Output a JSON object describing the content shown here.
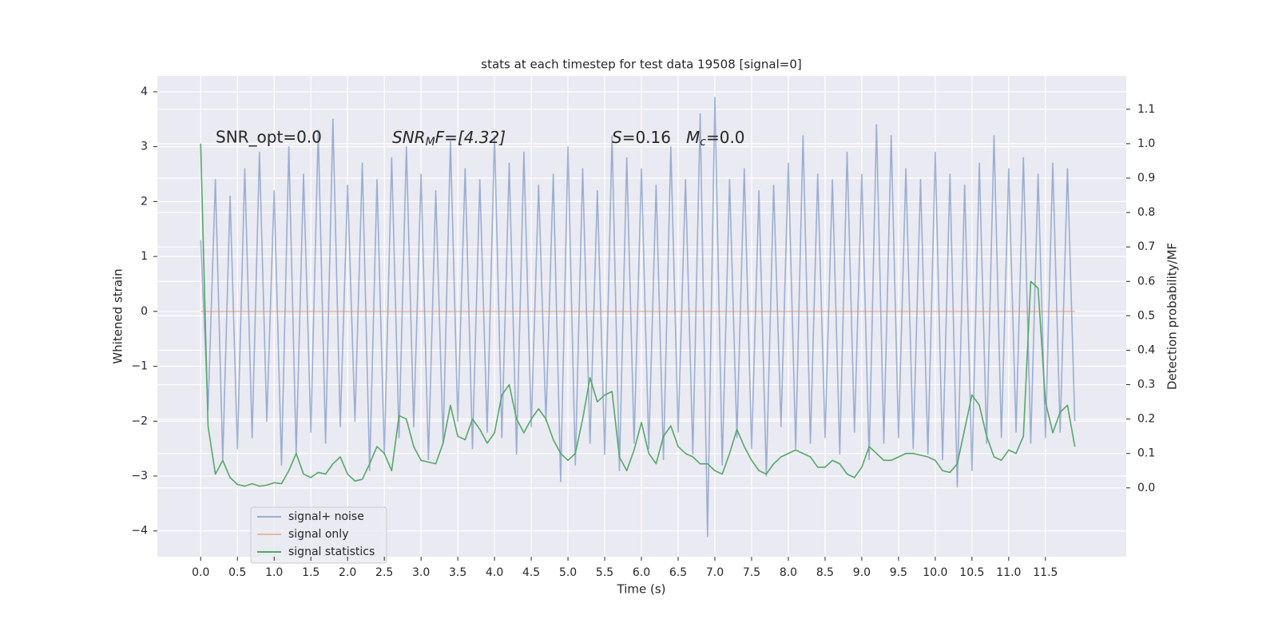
{
  "chart_data": {
    "type": "line",
    "title": "stats at each timestep for test data 19508 [signal=0]",
    "x_label": "Time (s)",
    "y_label": "Whitened strain",
    "y2_label": "Detection probability/MF",
    "annotations": [
      {
        "text": "SNR_opt=0.0"
      },
      {
        "base": "SNR",
        "sub": "M",
        "rest": "F=[4.32]"
      },
      {
        "base": "S",
        "rest": "=0.16",
        "base2": "M",
        "sub2": "c",
        "rest2": "=0.0"
      }
    ],
    "grid": true,
    "legend": "lower left",
    "xlim": [
      -0.59,
      12.6
    ],
    "ylim": [
      -4.47,
      4.29
    ],
    "y2lim": [
      -0.2,
      1.197
    ],
    "xticks": [
      {
        "value": 0,
        "label": "0.0"
      },
      0.5,
      {
        "value": 1,
        "label": "1.0"
      },
      1.5,
      {
        "value": 2,
        "label": "2.0"
      },
      2.5,
      {
        "value": 3,
        "label": "3.0"
      },
      3.5,
      {
        "value": 4,
        "label": "4.0"
      },
      4.5,
      {
        "value": 5,
        "label": "5.0"
      },
      5.5,
      {
        "value": 6,
        "label": "6.0"
      },
      6.5,
      {
        "value": 7,
        "label": "7.0"
      },
      7.5,
      {
        "value": 8,
        "label": "8.0"
      },
      8.5,
      {
        "value": 9,
        "label": "9.0"
      },
      9.5,
      {
        "value": 10,
        "label": "10.0"
      },
      10.5,
      {
        "value": 11,
        "label": "11.0"
      },
      11.5
    ],
    "yticks": [
      {
        "value": -4,
        "label": "−4"
      },
      {
        "value": -3,
        "label": "−3"
      },
      {
        "value": -2,
        "label": "−2"
      },
      {
        "value": -1,
        "label": "−1"
      },
      0,
      1,
      2,
      3,
      4
    ],
    "y2ticks": [
      {
        "value": 0,
        "label": "0.0"
      },
      0.1,
      0.2,
      0.3,
      0.4,
      0.5,
      0.6,
      0.7,
      0.8,
      0.9,
      {
        "value": 1,
        "label": "1.0"
      },
      1.1
    ],
    "x": [
      0,
      0.1,
      0.2,
      0.3,
      0.4,
      0.5,
      0.6,
      0.7,
      0.8,
      0.9,
      1,
      1.1,
      1.2,
      1.3,
      1.4,
      1.5,
      1.6,
      1.7,
      1.8,
      1.9,
      2,
      2.1,
      2.2,
      2.3,
      2.4,
      2.5,
      2.6,
      2.7,
      2.8,
      2.9,
      3,
      3.1,
      3.2,
      3.3,
      3.4,
      3.5,
      3.6,
      3.7,
      3.8,
      3.9,
      4,
      4.1,
      4.2,
      4.3,
      4.4,
      4.5,
      4.6,
      4.7,
      4.8,
      4.9,
      5,
      5.1,
      5.2,
      5.3,
      5.4,
      5.5,
      5.6,
      5.7,
      5.8,
      5.9,
      6,
      6.1,
      6.2,
      6.3,
      6.4,
      6.5,
      6.6,
      6.7,
      6.8,
      6.9,
      7,
      7.1,
      7.2,
      7.3,
      7.4,
      7.5,
      7.6,
      7.7,
      7.8,
      7.9,
      8,
      8.1,
      8.2,
      8.3,
      8.4,
      8.5,
      8.6,
      8.7,
      8.8,
      8.9,
      9,
      9.1,
      9.2,
      9.3,
      9.4,
      9.5,
      9.6,
      9.7,
      9.8,
      9.9,
      10,
      10.1,
      10.2,
      10.3,
      10.4,
      10.5,
      10.6,
      10.7,
      10.8,
      10.9,
      11,
      11.1,
      11.2,
      11.3,
      11.4,
      11.5,
      11.6,
      11.7,
      11.8,
      11.9
    ],
    "series": [
      {
        "name": "signal+ noise",
        "color": "#4c72b0",
        "values": [
          1.3,
          -1.8,
          2.4,
          -2.7,
          2.1,
          -2.5,
          2.6,
          -2.3,
          2.9,
          -2.0,
          2.2,
          -2.8,
          3.0,
          -2.6,
          2.5,
          -2.2,
          3.3,
          -2.4,
          3.5,
          -2.1,
          2.3,
          -2.0,
          2.7,
          -2.9,
          2.4,
          -2.6,
          2.8,
          -2.3,
          3.0,
          -2.1,
          2.5,
          -2.7,
          2.2,
          -2.4,
          3.1,
          -2.0,
          2.6,
          -2.5,
          2.4,
          -2.2,
          3.2,
          -2.3,
          2.7,
          -2.6,
          2.9,
          -2.1,
          2.3,
          -2.0,
          2.5,
          -3.1,
          3.0,
          -2.8,
          2.6,
          -2.4,
          2.2,
          -2.6,
          3.2,
          -2.9,
          2.8,
          -2.4,
          2.6,
          -2.5,
          2.3,
          -2.7,
          3.0,
          -2.2,
          2.4,
          -2.6,
          3.6,
          -4.1,
          3.9,
          -2.8,
          2.4,
          -2.3,
          2.6,
          -2.5,
          2.2,
          -3.0,
          2.3,
          -2.1,
          2.7,
          -2.5,
          3.2,
          -2.4,
          2.5,
          -2.3,
          2.4,
          -2.6,
          2.9,
          -2.2,
          2.5,
          -2.7,
          3.4,
          -2.4,
          3.2,
          -2.3,
          2.6,
          -2.5,
          2.4,
          -2.6,
          2.9,
          -2.7,
          2.5,
          -3.2,
          2.3,
          -2.9,
          2.7,
          -2.4,
          3.2,
          -2.3,
          2.6,
          -2.2,
          2.8,
          -2.4,
          2.5,
          -2.3,
          2.7,
          -2.2,
          2.6,
          -2.0
        ]
      },
      {
        "name": "signal only",
        "color": "#dd8452",
        "values": [
          0,
          0,
          0,
          0,
          0,
          0,
          0,
          0,
          0,
          0,
          0,
          0,
          0,
          0,
          0,
          0,
          0,
          0,
          0,
          0,
          0,
          0,
          0,
          0,
          0,
          0,
          0,
          0,
          0,
          0,
          0,
          0,
          0,
          0,
          0,
          0,
          0,
          0,
          0,
          0,
          0,
          0,
          0,
          0,
          0,
          0,
          0,
          0,
          0,
          0,
          0,
          0,
          0,
          0,
          0,
          0,
          0,
          0,
          0,
          0,
          0,
          0,
          0,
          0,
          0,
          0,
          0,
          0,
          0,
          0,
          0,
          0,
          0,
          0,
          0,
          0,
          0,
          0,
          0,
          0,
          0,
          0,
          0,
          0,
          0,
          0,
          0,
          0,
          0,
          0,
          0,
          0,
          0,
          0,
          0,
          0,
          0,
          0,
          0,
          0,
          0,
          0,
          0,
          0,
          0,
          0,
          0,
          0,
          0,
          0,
          0,
          0,
          0,
          0,
          0,
          0,
          0,
          0,
          0,
          0
        ]
      },
      {
        "name": "signal statistics",
        "color": "#55a868",
        "axis": "y2",
        "values": [
          1.0,
          0.18,
          0.04,
          0.08,
          0.03,
          0.01,
          0.005,
          0.012,
          0.005,
          0.008,
          0.015,
          0.012,
          0.05,
          0.1,
          0.04,
          0.03,
          0.045,
          0.04,
          0.07,
          0.09,
          0.04,
          0.02,
          0.025,
          0.07,
          0.12,
          0.1,
          0.05,
          0.21,
          0.2,
          0.12,
          0.08,
          0.075,
          0.07,
          0.13,
          0.24,
          0.15,
          0.14,
          0.2,
          0.17,
          0.13,
          0.16,
          0.27,
          0.3,
          0.2,
          0.16,
          0.2,
          0.23,
          0.2,
          0.14,
          0.1,
          0.08,
          0.1,
          0.2,
          0.32,
          0.25,
          0.27,
          0.28,
          0.09,
          0.05,
          0.11,
          0.19,
          0.1,
          0.07,
          0.15,
          0.18,
          0.12,
          0.1,
          0.09,
          0.07,
          0.07,
          0.05,
          0.04,
          0.1,
          0.17,
          0.12,
          0.08,
          0.05,
          0.04,
          0.07,
          0.09,
          0.1,
          0.11,
          0.1,
          0.09,
          0.06,
          0.06,
          0.08,
          0.07,
          0.04,
          0.03,
          0.06,
          0.12,
          0.1,
          0.08,
          0.08,
          0.09,
          0.1,
          0.1,
          0.095,
          0.09,
          0.08,
          0.05,
          0.045,
          0.07,
          0.17,
          0.27,
          0.24,
          0.15,
          0.09,
          0.08,
          0.11,
          0.1,
          0.15,
          0.6,
          0.58,
          0.25,
          0.16,
          0.22,
          0.24,
          0.12
        ]
      }
    ]
  }
}
